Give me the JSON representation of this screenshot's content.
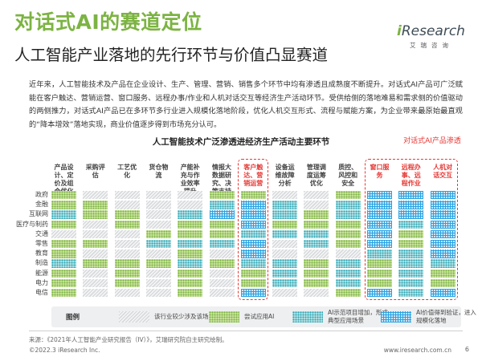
{
  "page": {
    "title": "对话式AI的赛道定位",
    "subtitle": "人工智能产业落地的先行环节与价值凸显赛道",
    "brand": {
      "logo_i": "i",
      "logo_rest": "Research",
      "cn": "艾瑞咨询"
    },
    "intro": "近年来，人工智能技术及产品在企业设计、生产、管理、营销、销售多个环节中均有渗透且成熟度不断提升。对话式AI产品可广泛赋能在客户触达、营销运营、窗口服务、远程办事/作业和人机对话交互等经济生产活动环节。受供给侧的落地难易和需求侧的价值驱动的两侧推力，对话式AI产品已在多环节多行业进入规模化落地阶段，优化人机交互形式、流程与赋能方案，为企业带来最原始最直观的“降本增效”落地实现，商业价值逐步得到市场充分认可。",
    "highlight_label": "对话式AI产品渗透",
    "chart_title": "人工智能技术广泛渗透进经济生产活动主要环节",
    "source": "来源：《2021年人工智能产业研究报告（IV）》，艾瑞研究院自主研究绘制。",
    "copyright": "©2022.3 iResearch Inc.",
    "site": "www.iresearch.com.cn",
    "page_number": "6"
  },
  "chart_data": {
    "type": "table",
    "title": "人工智能技术广泛渗透进经济生产活动主要环节",
    "columns": [
      "产品设计、定价及组合优化",
      "采购评估",
      "工艺优化",
      "货仓物流",
      "产能补充与作业效率提升",
      "情报大数据研究、决策支持",
      "客户触达、营销运营",
      "设备运维故障分析",
      "管理调度运筹优化",
      "质控、风控和安全",
      "窗口服务",
      "远程办事、远程作业",
      "人机对话交互"
    ],
    "highlighted_columns": [
      6,
      10,
      11,
      12
    ],
    "rows": [
      "政府",
      "金融",
      "互联网",
      "医疗与制药",
      "交通",
      "零售",
      "教育",
      "制造",
      "能源",
      "电力",
      "电信"
    ],
    "status_keys": [
      "none",
      "low",
      "try",
      "demo",
      "scale"
    ],
    "cells": [
      [
        "try",
        "low",
        "low",
        "low",
        "low",
        "try",
        "try",
        "low",
        "low",
        "try",
        "scale",
        "scale",
        "scale"
      ],
      [
        "try",
        "try",
        "low",
        "low",
        "low",
        "demo",
        "scale",
        "demo",
        "low",
        "demo",
        "scale",
        "scale",
        "scale"
      ],
      [
        "demo",
        "try",
        "try",
        "low",
        "demo",
        "scale",
        "scale",
        "demo",
        "try",
        "demo",
        "scale",
        "scale",
        "scale"
      ],
      [
        "try",
        "low",
        "try",
        "low",
        "try",
        "try",
        "scale",
        "try",
        "try",
        "try",
        "scale",
        "demo",
        "scale"
      ],
      [
        "low",
        "low",
        "low",
        "try",
        "try",
        "try",
        "demo",
        "demo",
        "demo",
        "try",
        "scale",
        "try",
        "scale"
      ],
      [
        "try",
        "try",
        "low",
        "demo",
        "demo",
        "demo",
        "scale",
        "low",
        "demo",
        "try",
        "scale",
        "try",
        "scale"
      ],
      [
        "try",
        "low",
        "low",
        "low",
        "try",
        "low",
        "scale",
        "low",
        "low",
        "low",
        "demo",
        "demo",
        "scale"
      ],
      [
        "demo",
        "try",
        "try",
        "try",
        "demo",
        "try",
        "demo",
        "demo",
        "try",
        "demo",
        "try",
        "demo",
        "demo"
      ],
      [
        "try",
        "low",
        "try",
        "low",
        "try",
        "low",
        "try",
        "demo",
        "try",
        "demo",
        "try",
        "demo",
        "try"
      ],
      [
        "try",
        "low",
        "try",
        "low",
        "try",
        "low",
        "try",
        "demo",
        "try",
        "demo",
        "try",
        "demo",
        "try"
      ],
      [
        "try",
        "low",
        "low",
        "low",
        "try",
        "low",
        "scale",
        "low",
        "low",
        "try",
        "scale",
        "demo",
        "scale"
      ]
    ],
    "legend": {
      "title": "图例",
      "items": [
        {
          "key": "low",
          "label": "该行业较少涉及该场景"
        },
        {
          "key": "try",
          "label": "尝试应用AI"
        },
        {
          "key": "demo",
          "label": "AI示范项目增加，形成典型应用场景"
        },
        {
          "key": "scale",
          "label": "AI价值得到验证，进入规模化落地"
        }
      ]
    },
    "colors": {
      "title_green": "#7cb342",
      "highlight_red": "#e53935",
      "try_green": "#c9e29e",
      "demo_teal": "#b5e0e4",
      "scale_blue": "#29a3e0",
      "low_grey": "#d8dadc"
    }
  }
}
